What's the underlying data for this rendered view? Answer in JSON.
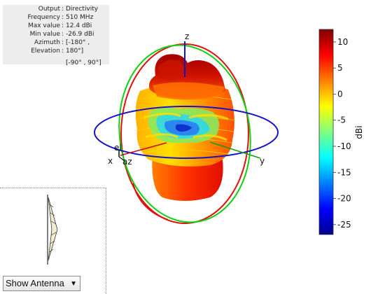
{
  "info": {
    "rows": [
      {
        "label": "Output",
        "value": "Directivity"
      },
      {
        "label": "Frequency",
        "value": "510 MHz"
      },
      {
        "label": "Max value",
        "value": "12.4 dBi"
      },
      {
        "label": "Min value",
        "value": "-26.9 dBi"
      },
      {
        "label": "Azimuth",
        "value": "[-180° ,"
      },
      {
        "label": "Elevation",
        "value": "180°]"
      }
    ],
    "extra": "[-90° , 90°]"
  },
  "axes": {
    "z": "z",
    "x": "x",
    "y": "y",
    "el": "el",
    "az": "az"
  },
  "show_dropdown": {
    "selected": "Show Antenna"
  },
  "chart_data": {
    "type": "3d-radiation-pattern",
    "quantity": "Directivity",
    "frequency": "510 MHz",
    "max_value": 12.4,
    "min_value": -26.9,
    "azimuth_range": [
      -180,
      180
    ],
    "elevation_range": [
      -90,
      90
    ],
    "colorbar": {
      "label": "dBi",
      "range": [
        -26.9,
        12.4
      ],
      "ticks": [
        10,
        5,
        0,
        -5,
        -10,
        -15,
        -20,
        -25
      ],
      "colormap": "jet"
    }
  }
}
